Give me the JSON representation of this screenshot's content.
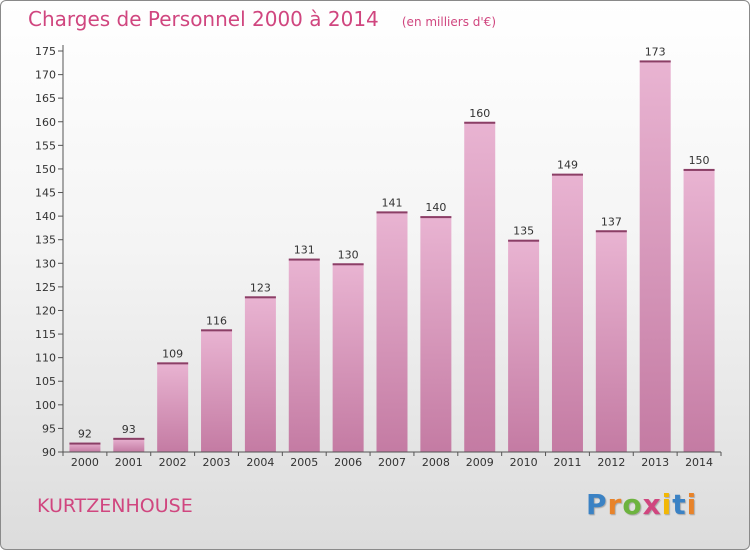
{
  "title": "Charges de Personnel 2000 à 2014",
  "subtitle": "(en milliers d'€)",
  "commune": "KURTZENHOUSE",
  "brand": {
    "text": "Proxiti",
    "letter_colors": [
      "#3b82c4",
      "#e8832a",
      "#6db33f",
      "#d0467f",
      "#f2b705",
      "#3b82c4",
      "#e8832a"
    ]
  },
  "colors": {
    "bar_light": "#e9b4d2",
    "bar_dark": "#c47ba3",
    "bar_top": "#8b3f66",
    "label": "#333333",
    "axis": "#555555"
  },
  "chart_data": {
    "type": "bar",
    "title": "Charges de Personnel 2000 à 2014",
    "subtitle": "(en milliers d'€)",
    "categories": [
      "2000",
      "2001",
      "2002",
      "2003",
      "2004",
      "2005",
      "2006",
      "2007",
      "2008",
      "2009",
      "2010",
      "2011",
      "2012",
      "2013",
      "2014"
    ],
    "values": [
      92,
      93,
      109,
      116,
      123,
      131,
      130,
      141,
      140,
      160,
      135,
      149,
      137,
      173,
      150
    ],
    "data_labels": [
      "92",
      "93",
      "109",
      "116",
      "123",
      "131",
      "130",
      "141",
      "140",
      "160",
      "135",
      "149",
      "137",
      "173",
      "150"
    ],
    "ylim": [
      90,
      175
    ],
    "yticks": [
      90,
      95,
      100,
      105,
      110,
      115,
      120,
      125,
      130,
      135,
      140,
      145,
      150,
      155,
      160,
      165,
      170,
      175
    ],
    "grid": false,
    "legend": "none"
  }
}
